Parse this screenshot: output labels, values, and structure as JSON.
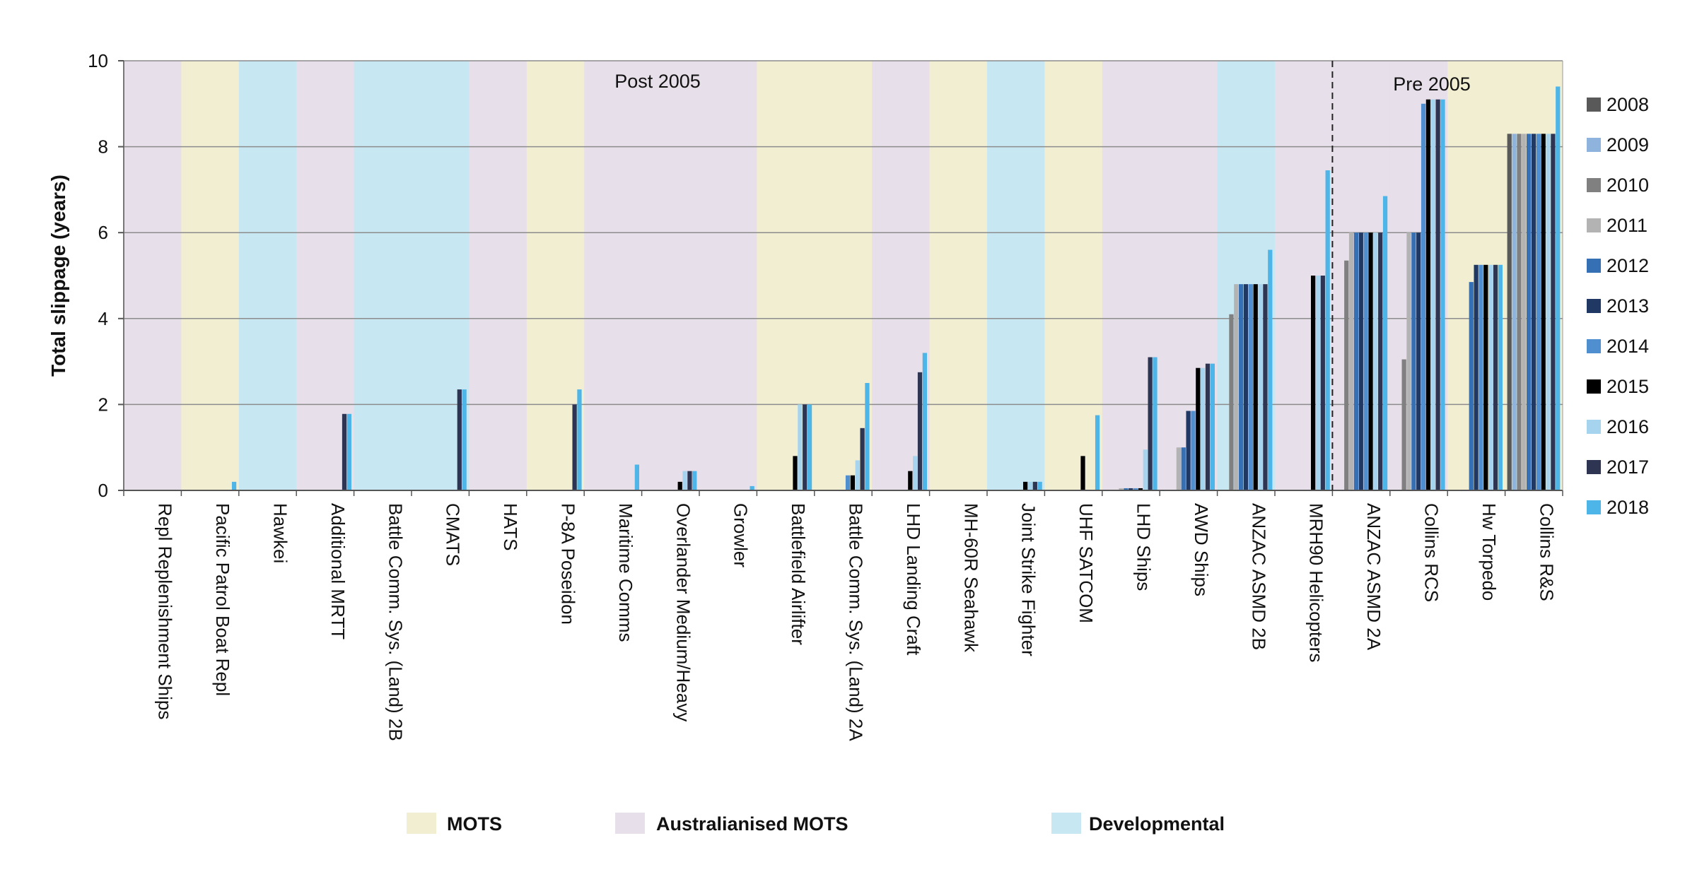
{
  "chart_data": {
    "type": "bar",
    "ylabel": "Total slippage (years)",
    "ylim": [
      0,
      10
    ],
    "yticks": [
      0,
      2,
      4,
      6,
      8,
      10
    ],
    "grid": true,
    "legend_position": "right",
    "annotations": {
      "post": "Post 2005",
      "pre": "Pre 2005"
    },
    "categories": [
      "Repl Replenishment Ships",
      "Pacific Patrol Boat Repl",
      "Hawkei",
      "Additional MRTT",
      "Battle Comm. Sys. (Land) 2B",
      "CMATS",
      "HATS",
      "P-8A Poseidon",
      "Maritime Comms",
      "Overlander Medium/Heavy",
      "Growler",
      "Battlefield Airlifter",
      "Battle Comm. Sys. (Land) 2A",
      "LHD Landing Craft",
      "MH-60R Seahawk",
      "Joint Strike Fighter",
      "UHF SATCOM",
      "LHD Ships",
      "AWD Ships",
      "ANZAC ASMD 2B",
      "MRH90 Helicopters",
      "ANZAC ASMD 2A",
      "Collins RCS",
      "Hw Torpedo",
      "Collins R&S"
    ],
    "category_class": [
      "A",
      "M",
      "D",
      "A",
      "D",
      "D",
      "A",
      "M",
      "A",
      "A",
      "A",
      "M",
      "M",
      "A",
      "M",
      "D",
      "M",
      "A",
      "A",
      "D",
      "A",
      "A",
      "A",
      "M",
      "M"
    ],
    "classes": [
      {
        "key": "M",
        "name": "MOTS",
        "color": "#f2eed2"
      },
      {
        "key": "A",
        "name": "Australianised MOTS",
        "color": "#e7dfe9"
      },
      {
        "key": "D",
        "name": "Developmental",
        "color": "#c7e7f2"
      }
    ],
    "series": [
      {
        "name": "2008",
        "color": "#595959",
        "values": [
          0,
          0,
          0,
          0,
          0,
          0,
          0,
          0,
          0,
          0,
          0,
          0,
          0,
          0,
          0,
          0,
          0,
          0,
          0,
          0,
          0,
          0,
          0,
          0,
          8.3
        ]
      },
      {
        "name": "2009",
        "color": "#8eb3dc",
        "values": [
          0,
          0,
          0,
          0,
          0,
          0,
          0,
          0,
          0,
          0,
          0,
          0,
          0,
          0,
          0,
          0,
          0,
          0,
          0,
          0,
          0,
          0,
          0,
          0,
          8.3
        ]
      },
      {
        "name": "2010",
        "color": "#808080",
        "values": [
          0,
          0,
          0,
          0,
          0,
          0,
          0,
          0,
          0,
          0,
          0,
          0,
          0,
          0,
          0,
          0,
          0,
          0,
          0,
          4.1,
          0,
          5.35,
          3.05,
          0,
          8.3
        ]
      },
      {
        "name": "2011",
        "color": "#b3b3b3",
        "values": [
          0,
          0,
          0,
          0,
          0,
          0,
          0,
          0,
          0,
          0,
          0,
          0,
          0,
          0,
          0,
          0,
          0,
          0.05,
          1.0,
          4.8,
          0,
          6.0,
          6.0,
          0,
          8.3
        ]
      },
      {
        "name": "2012",
        "color": "#3570b5",
        "values": [
          0,
          0,
          0,
          0,
          0,
          0,
          0,
          0,
          0,
          0,
          0,
          0,
          0,
          0,
          0,
          0,
          0,
          0.05,
          1.0,
          4.8,
          0,
          6.0,
          6.0,
          4.85,
          8.3
        ]
      },
      {
        "name": "2013",
        "color": "#1f3864",
        "values": [
          0,
          0,
          0,
          0,
          0,
          0,
          0,
          0,
          0,
          0,
          0,
          0,
          0,
          0,
          0,
          0,
          0,
          0.05,
          1.85,
          4.8,
          0,
          6.0,
          6.0,
          5.25,
          8.3
        ]
      },
      {
        "name": "2014",
        "color": "#4f8fd0",
        "values": [
          0,
          0,
          0,
          0,
          0,
          0,
          0,
          0,
          0,
          0,
          0,
          0,
          0.35,
          0,
          0,
          0,
          0,
          0.05,
          1.85,
          4.8,
          0,
          6.0,
          9.0,
          5.25,
          8.3
        ]
      },
      {
        "name": "2015",
        "color": "#000000",
        "values": [
          0,
          0,
          0,
          0,
          0,
          0,
          0,
          0,
          0,
          0.2,
          0,
          0.8,
          0.35,
          0.45,
          0,
          0.2,
          0.8,
          0.05,
          2.85,
          4.8,
          5.0,
          6.0,
          9.1,
          5.25,
          8.3
        ]
      },
      {
        "name": "2016",
        "color": "#a6d4ee",
        "values": [
          0,
          0,
          0,
          0,
          0,
          0,
          0,
          0,
          0,
          0.45,
          0,
          2.0,
          0.7,
          0.8,
          0,
          0.2,
          0,
          0.95,
          2.85,
          4.8,
          5.0,
          6.0,
          9.1,
          5.25,
          8.3
        ]
      },
      {
        "name": "2017",
        "color": "#2e3553",
        "values": [
          0,
          0,
          0,
          1.78,
          0,
          2.35,
          0,
          2.0,
          0,
          0.45,
          0,
          2.0,
          1.45,
          2.75,
          0,
          0.2,
          0,
          3.1,
          2.95,
          4.8,
          5.0,
          6.0,
          9.1,
          5.25,
          8.3
        ]
      },
      {
        "name": "2018",
        "color": "#4db5e8",
        "values": [
          0,
          0.2,
          0,
          1.78,
          0,
          2.35,
          0,
          2.35,
          0.6,
          0.45,
          0.1,
          2.0,
          2.5,
          3.2,
          0,
          0.2,
          1.75,
          3.1,
          2.95,
          5.6,
          7.45,
          6.85,
          9.1,
          5.25,
          9.4
        ]
      }
    ]
  }
}
